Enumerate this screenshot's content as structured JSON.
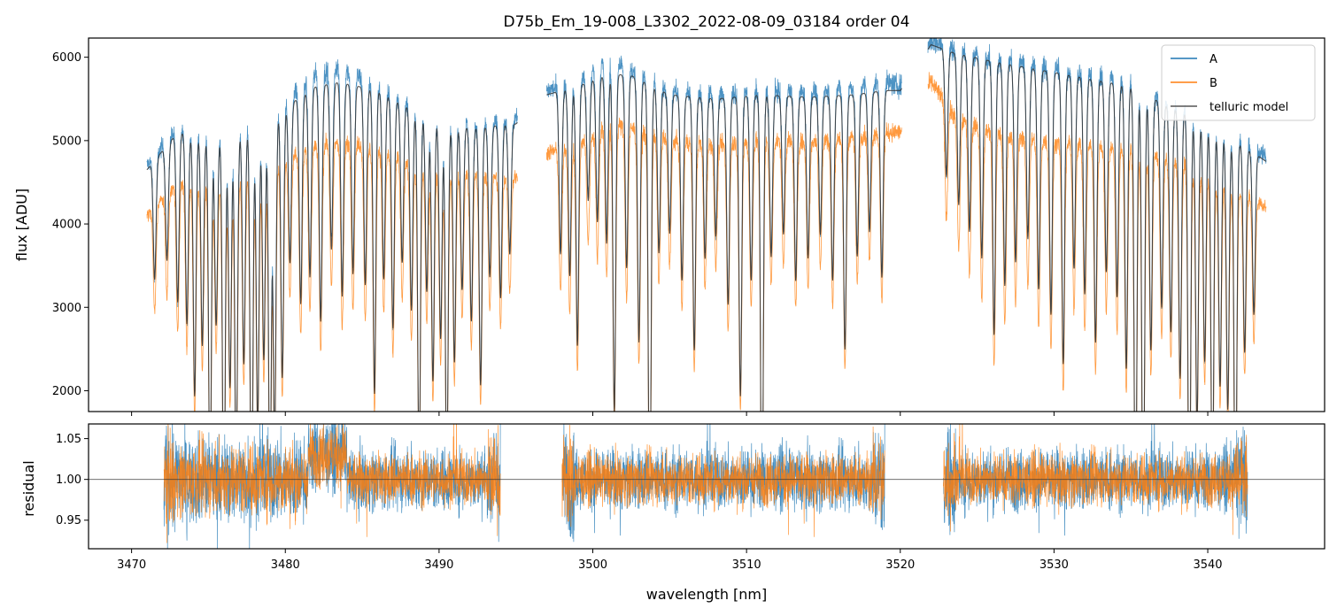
{
  "chart_data": [
    {
      "panel": "top",
      "type": "line",
      "title": "D75b_Em_19-008_L3302_2022-08-09_03184  order 04",
      "xlabel": "",
      "ylabel": "flux [ADU]",
      "xlim": [
        3467.2,
        3547.6
      ],
      "ylim": [
        1750,
        6230
      ],
      "xticks": [
        3470,
        3480,
        3490,
        3500,
        3510,
        3520,
        3530,
        3540
      ],
      "yticks": [
        2000,
        3000,
        4000,
        5000,
        6000
      ],
      "ytick_labels": [
        "2000",
        "3000",
        "4000",
        "5000",
        "6000"
      ],
      "legend": {
        "location": "upper right",
        "entries": [
          {
            "label": "A",
            "color": "#1f77b4"
          },
          {
            "label": "B",
            "color": "#ff7f0e"
          },
          {
            "label": "telluric model",
            "color": "#555555"
          }
        ]
      },
      "segments": [
        [
          3471.0,
          3495.1
        ],
        [
          3497.0,
          3520.1
        ],
        [
          3521.8,
          3543.8
        ]
      ],
      "series": [
        {
          "name": "A",
          "color": "#1f77b4",
          "continuum": {
            "x": [
              3471,
              3473,
              3476,
              3478,
              3480,
              3482,
              3483.5,
              3486,
              3488,
              3490,
              3492,
              3495,
              3497,
              3499,
              3501,
              3502.5,
              3505,
              3508,
              3511,
              3514,
              3517,
              3519,
              3520,
              3522,
              3523.5,
              3526,
              3529,
              3532,
              3535,
              3537,
              3539,
              3541,
              3543.8
            ],
            "y": [
              4700,
              5150,
              5100,
              5250,
              5500,
              5800,
              5900,
              5650,
              5450,
              5300,
              5200,
              5250,
              5600,
              5700,
              6000,
              5850,
              5600,
              5550,
              5600,
              5580,
              5650,
              5700,
              5650,
              6200,
              6100,
              6000,
              5900,
              5800,
              5700,
              5500,
              5350,
              5150,
              4800
            ]
          }
        },
        {
          "name": "B",
          "color": "#ff7f0e",
          "continuum": {
            "x": [
              3471,
              3473,
              3476,
              3478,
              3480,
              3482,
              3483.5,
              3486,
              3488,
              3490,
              3492,
              3495,
              3497,
              3499,
              3501,
              3502.5,
              3505,
              3508,
              3511,
              3514,
              3517,
              3519,
              3520,
              3522,
              3523.5,
              3526,
              3529,
              3532,
              3535,
              3537,
              3539,
              3541,
              3543.8
            ],
            "y": [
              4100,
              4500,
              4500,
              4650,
              4800,
              4950,
              5000,
              4900,
              4750,
              4650,
              4600,
              4550,
              4850,
              4950,
              5200,
              5150,
              5000,
              4950,
              5000,
              4980,
              5050,
              5100,
              5100,
              5700,
              5300,
              5100,
              5000,
              4950,
              4900,
              4800,
              4700,
              4500,
              4200
            ]
          }
        },
        {
          "name": "telluric model",
          "color": "#333333",
          "continuum": {
            "x": [
              3471,
              3473,
              3476,
              3478,
              3480,
              3482,
              3483.5,
              3486,
              3488,
              3490,
              3492,
              3495,
              3497,
              3499,
              3501,
              3502.5,
              3505,
              3508,
              3511,
              3514,
              3517,
              3519,
              3520,
              3522,
              3523.5,
              3526,
              3529,
              3532,
              3535,
              3537,
              3539,
              3541,
              3543.8
            ],
            "y": [
              4650,
              5100,
              5050,
              5200,
              5400,
              5650,
              5700,
              5600,
              5400,
              5250,
              5150,
              5200,
              5550,
              5650,
              5800,
              5780,
              5550,
              5500,
              5550,
              5520,
              5550,
              5600,
              5600,
              6150,
              6050,
              5950,
              5850,
              5750,
              5650,
              5450,
              5300,
              5100,
              4750
            ]
          }
        }
      ],
      "absorption_lines": {
        "x": [
          3471.5,
          3472.3,
          3473.0,
          3473.6,
          3474.1,
          3474.6,
          3475.1,
          3475.5,
          3476.0,
          3476.4,
          3476.8,
          3477.3,
          3477.8,
          3478.2,
          3478.6,
          3479.0,
          3479.3,
          3479.8,
          3480.3,
          3481.0,
          3481.6,
          3482.3,
          3483.0,
          3483.7,
          3484.4,
          3485.2,
          3485.8,
          3486.4,
          3487.0,
          3487.6,
          3488.2,
          3488.7,
          3489.2,
          3489.6,
          3490.1,
          3490.5,
          3491.0,
          3491.5,
          3492.1,
          3492.7,
          3493.3,
          3494.0,
          3494.6,
          3497.9,
          3498.5,
          3499.0,
          3499.7,
          3500.3,
          3500.9,
          3501.4,
          3502.2,
          3503.0,
          3503.7,
          3504.3,
          3505.0,
          3505.8,
          3506.6,
          3507.3,
          3508.0,
          3508.8,
          3509.6,
          3510.3,
          3511.0,
          3511.6,
          3512.4,
          3513.2,
          3514.0,
          3514.8,
          3515.6,
          3516.4,
          3517.2,
          3518.0,
          3518.8,
          3523.0,
          3523.8,
          3524.5,
          3525.3,
          3526.1,
          3526.8,
          3527.5,
          3528.3,
          3529.0,
          3529.8,
          3530.6,
          3531.3,
          3532.0,
          3532.7,
          3533.4,
          3534.1,
          3534.7,
          3535.3,
          3535.8,
          3536.3,
          3537.0,
          3537.6,
          3538.2,
          3538.8,
          3539.3,
          3539.8,
          3540.3,
          3540.8,
          3541.3,
          3541.8,
          3542.4,
          3543.0
        ],
        "depth": [
          0.3,
          0.28,
          0.4,
          0.45,
          0.62,
          0.5,
          0.85,
          0.45,
          0.95,
          0.6,
          0.8,
          0.55,
          0.98,
          0.7,
          0.55,
          0.88,
          0.75,
          0.6,
          0.35,
          0.45,
          0.4,
          0.5,
          0.35,
          0.45,
          0.4,
          0.42,
          0.65,
          0.4,
          0.5,
          0.35,
          0.45,
          0.8,
          0.4,
          0.6,
          0.5,
          0.82,
          0.55,
          0.38,
          0.45,
          0.6,
          0.35,
          0.4,
          0.3,
          0.35,
          0.4,
          0.55,
          0.25,
          0.3,
          0.35,
          0.7,
          0.4,
          0.55,
          0.98,
          0.35,
          0.3,
          0.4,
          0.55,
          0.35,
          0.3,
          0.45,
          0.65,
          0.4,
          0.96,
          0.35,
          0.3,
          0.4,
          0.35,
          0.3,
          0.4,
          0.55,
          0.35,
          0.3,
          0.4,
          0.25,
          0.3,
          0.35,
          0.4,
          0.55,
          0.45,
          0.4,
          0.35,
          0.45,
          0.5,
          0.6,
          0.4,
          0.45,
          0.55,
          0.4,
          0.45,
          0.6,
          0.95,
          0.98,
          0.55,
          0.45,
          0.5,
          0.6,
          0.97,
          0.7,
          0.55,
          0.9,
          0.6,
          0.65,
          0.95,
          0.5,
          0.4
        ]
      }
    },
    {
      "panel": "bottom",
      "type": "line",
      "title": "",
      "xlabel": "wavelength [nm]",
      "ylabel": "residual",
      "xlim": [
        3467.2,
        3547.6
      ],
      "ylim": [
        0.915,
        1.068
      ],
      "xticks": [
        3470,
        3480,
        3490,
        3500,
        3510,
        3520,
        3530,
        3540
      ],
      "xtick_labels": [
        "3470",
        "3480",
        "3490",
        "3500",
        "3510",
        "3520",
        "3530",
        "3540"
      ],
      "yticks": [
        0.95,
        1.0,
        1.05
      ],
      "ytick_labels": [
        "0.95",
        "1.00",
        "1.05"
      ],
      "reference_line": 1.0,
      "segments": [
        [
          3472.1,
          3494.0
        ],
        [
          3498.0,
          3519.0
        ],
        [
          3522.8,
          3542.6
        ]
      ],
      "series": [
        {
          "name": "A",
          "color": "#1f77b4",
          "mean": 1.0,
          "spread": 0.03
        },
        {
          "name": "B",
          "color": "#ff7f0e",
          "mean": 1.0,
          "spread": 0.025
        }
      ]
    }
  ]
}
